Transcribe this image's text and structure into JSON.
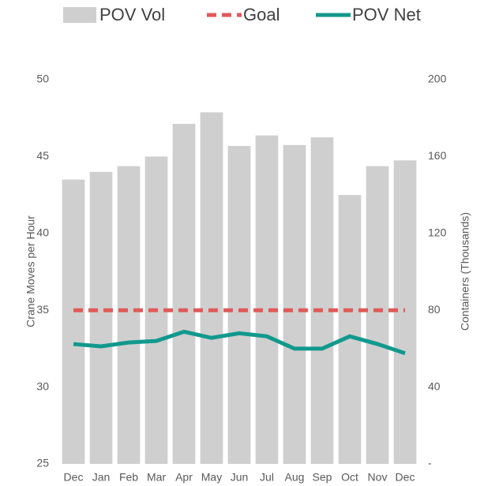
{
  "chart_data": {
    "type": "bar",
    "categories": [
      "Dec",
      "Jan",
      "Feb",
      "Mar",
      "Apr",
      "May",
      "Jun",
      "Jul",
      "Aug",
      "Sep",
      "Oct",
      "Nov",
      "Dec"
    ],
    "ylabel": "Crane Moves per Hour",
    "y2label": "Containers (Thousands)",
    "ylim": [
      25,
      50
    ],
    "yticks": [
      25,
      30,
      35,
      40,
      45,
      50
    ],
    "y2lim": [
      0,
      200
    ],
    "y2ticks": [
      {
        "value": 0,
        "label": "-"
      },
      40,
      80,
      120,
      160,
      200
    ],
    "legend": "top",
    "series": [
      {
        "name": "POV Vol",
        "type": "bar",
        "axis": "y2",
        "color": "#d0cfcf",
        "values": [
          148,
          152,
          155,
          160,
          177,
          183,
          165.5,
          171,
          166,
          170,
          140,
          155,
          158
        ]
      },
      {
        "name": "Goal",
        "type": "line",
        "linestyle": "dashed",
        "color": "#e05a5a",
        "values": [
          35,
          35,
          35,
          35,
          35,
          35,
          35,
          35,
          35,
          35,
          35,
          35,
          35
        ]
      },
      {
        "name": "POV Net",
        "type": "line",
        "linestyle": "solid",
        "color": "#12998e",
        "values": [
          32.8,
          32.65,
          32.9,
          33.0,
          33.6,
          33.2,
          33.5,
          33.3,
          32.5,
          32.5,
          33.3,
          32.8,
          32.2
        ]
      }
    ]
  }
}
